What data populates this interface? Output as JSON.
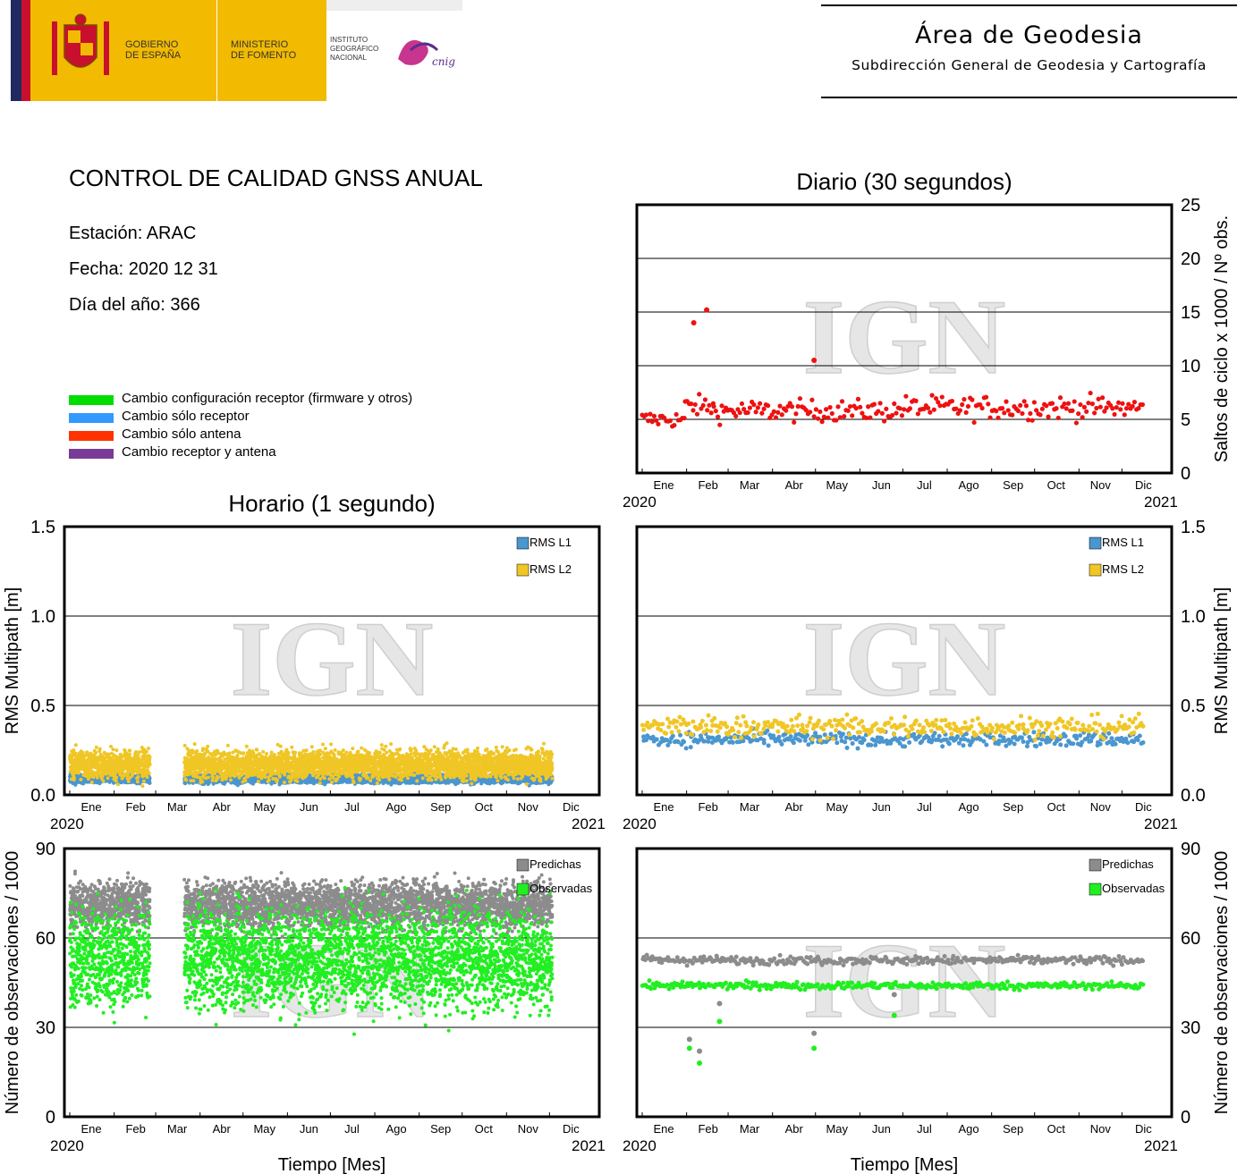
{
  "header": {
    "gov_line1": "GOBIERNO",
    "gov_line2": "DE ESPAÑA",
    "min_line1": "MINISTERIO",
    "min_line2": "DE FOMENTO",
    "ign_line1": "INSTITUTO",
    "ign_line2": "GEOGRÁFICO",
    "ign_line3": "NACIONAL",
    "cnig": "cnig",
    "area_title": "Área de Geodesia",
    "area_subtitle": "Subdirección General de Geodesia y Cartografía",
    "colors": {
      "yellow": "#F2BA00",
      "red": "#C8102E",
      "navy": "#1F2A60"
    }
  },
  "report": {
    "title": "CONTROL DE CALIDAD GNSS ANUAL",
    "station": "Estación: ARAC",
    "date": "Fecha: 2020 12 31",
    "doy": "Día del año: 366"
  },
  "legend": [
    {
      "label": "Cambio configuración receptor (firmware y otros)",
      "color": "#00DD00"
    },
    {
      "label": "Cambio sólo receptor",
      "color": "#3399FF"
    },
    {
      "label": "Cambio sólo antena",
      "color": "#FF3300"
    },
    {
      "label": "Cambio receptor y antena",
      "color": "#7A3B96"
    }
  ],
  "watermark": "IGN",
  "chart_data": [
    {
      "id": "cycle_slips_daily",
      "type": "scatter",
      "title": "Diario (30 segundos)",
      "ylabel": "Saltos de ciclo x 1000 / Nº obs.",
      "xlabel": "",
      "x_start": "2020",
      "x_end": "2021",
      "x_ticks": [
        "Ene",
        "Feb",
        "Mar",
        "Abr",
        "May",
        "Jun",
        "Jul",
        "Ago",
        "Sep",
        "Oct",
        "Nov",
        "Dic"
      ],
      "ylim": [
        0,
        25
      ],
      "y_ticks": [
        0,
        5,
        10,
        15,
        20,
        25
      ],
      "grid": true,
      "series": [
        {
          "color": "#EE1111",
          "style": "points",
          "x_range_days": [
            0,
            350
          ],
          "segments": [
            {
              "from_day": 0,
              "to_day": 30,
              "mean": 5.0,
              "spread": 0.4
            },
            {
              "from_day": 30,
              "to_day": 50,
              "mean": 6.2,
              "spread": 0.5
            },
            {
              "from_day": 50,
              "to_day": 180,
              "mean": 5.8,
              "spread": 0.5
            },
            {
              "from_day": 180,
              "to_day": 350,
              "mean": 6.1,
              "spread": 0.55
            }
          ],
          "outliers": [
            {
              "day": 36,
              "value": 14
            },
            {
              "day": 45,
              "value": 15.2
            },
            {
              "day": 120,
              "value": 10.5
            }
          ]
        }
      ]
    },
    {
      "id": "multipath_hourly",
      "type": "scatter",
      "title": "Horario (1 segundo)",
      "ylabel": "RMS Multipath [m]",
      "xlabel": "",
      "x_start": "2020",
      "x_end": "2021",
      "x_ticks": [
        "Ene",
        "Feb",
        "Mar",
        "Abr",
        "May",
        "Jun",
        "Jul",
        "Ago",
        "Sep",
        "Oct",
        "Nov",
        "Dic"
      ],
      "ylim": [
        0,
        1.5
      ],
      "y_ticks": [
        "0.0",
        "0.5",
        "1.0",
        "1.5"
      ],
      "grid": true,
      "legend": [
        "RMS L1",
        "RMS L2"
      ],
      "series": [
        {
          "name": "RMS L1",
          "color": "#4A96CF",
          "mean": 0.09,
          "spread": 0.012,
          "ranges_days": [
            [
              0,
              49
            ],
            [
              50,
              56
            ],
            [
              80,
              337
            ]
          ]
        },
        {
          "name": "RMS L2",
          "color": "#F0C626",
          "mean": 0.17,
          "spread": 0.04,
          "ranges_days": [
            [
              0,
              49
            ],
            [
              50,
              56
            ],
            [
              80,
              337
            ]
          ]
        }
      ]
    },
    {
      "id": "multipath_daily",
      "type": "scatter",
      "title": "",
      "ylabel": "RMS Multipath [m]",
      "xlabel": "",
      "x_start": "2020",
      "x_end": "2021",
      "x_ticks": [
        "Ene",
        "Feb",
        "Mar",
        "Abr",
        "May",
        "Jun",
        "Jul",
        "Ago",
        "Sep",
        "Oct",
        "Nov",
        "Dic"
      ],
      "ylim": [
        0,
        1.5
      ],
      "y_ticks": [
        "0.0",
        "0.5",
        "1.0",
        "1.5"
      ],
      "grid": true,
      "legend": [
        "RMS L1",
        "RMS L2"
      ],
      "series": [
        {
          "name": "RMS L1",
          "color": "#4A96CF",
          "mean": 0.31,
          "spread": 0.02,
          "ranges_days": [
            [
              0,
              350
            ]
          ]
        },
        {
          "name": "RMS L2",
          "color": "#F0C626",
          "mean": 0.38,
          "spread": 0.03,
          "ranges_days": [
            [
              0,
              350
            ]
          ]
        }
      ]
    },
    {
      "id": "observations_hourly",
      "type": "scatter",
      "title": "",
      "ylabel": "Número de observaciones / 1000",
      "xlabel": "Tiempo [Mes]",
      "x_start": "2020",
      "x_end": "2021",
      "x_ticks": [
        "Ene",
        "Feb",
        "Mar",
        "Abr",
        "May",
        "Jun",
        "Jul",
        "Ago",
        "Sep",
        "Oct",
        "Nov",
        "Dic"
      ],
      "ylim": [
        0,
        90
      ],
      "y_ticks": [
        0,
        30,
        60,
        90
      ],
      "grid": true,
      "legend": [
        "Predichas",
        "Observadas"
      ],
      "series": [
        {
          "name": "Predichas",
          "color": "#8C8C8C",
          "mean": 71,
          "spread": 4,
          "ranges_days": [
            [
              0,
              49
            ],
            [
              50,
              56
            ],
            [
              80,
              337
            ]
          ]
        },
        {
          "name": "Observadas",
          "color": "#22EE22",
          "mean": 53,
          "spread": 8,
          "ranges_days": [
            [
              0,
              49
            ],
            [
              50,
              56
            ],
            [
              80,
              337
            ]
          ]
        }
      ]
    },
    {
      "id": "observations_daily",
      "type": "scatter",
      "title": "",
      "ylabel": "Número de observaciones / 1000",
      "xlabel": "Tiempo [Mes]",
      "x_start": "2020",
      "x_end": "2021",
      "x_ticks": [
        "Ene",
        "Feb",
        "Mar",
        "Abr",
        "May",
        "Jun",
        "Jul",
        "Ago",
        "Sep",
        "Oct",
        "Nov",
        "Dic"
      ],
      "ylim": [
        0,
        90
      ],
      "y_ticks": [
        0,
        30,
        60,
        90
      ],
      "grid": true,
      "legend": [
        "Predichas",
        "Observadas"
      ],
      "series": [
        {
          "name": "Predichas",
          "color": "#8C8C8C",
          "mean": 52.5,
          "spread": 0.7,
          "ranges_days": [
            [
              0,
              350
            ]
          ],
          "outliers": [
            {
              "day": 33,
              "value": 26
            },
            {
              "day": 40,
              "value": 22
            },
            {
              "day": 54,
              "value": 38
            },
            {
              "day": 120,
              "value": 28
            },
            {
              "day": 176,
              "value": 41
            }
          ]
        },
        {
          "name": "Observadas",
          "color": "#22EE22",
          "mean": 44,
          "spread": 0.6,
          "ranges_days": [
            [
              0,
              350
            ]
          ],
          "outliers": [
            {
              "day": 33,
              "value": 23
            },
            {
              "day": 40,
              "value": 18
            },
            {
              "day": 54,
              "value": 32
            },
            {
              "day": 120,
              "value": 23
            },
            {
              "day": 176,
              "value": 34
            }
          ]
        }
      ]
    }
  ]
}
